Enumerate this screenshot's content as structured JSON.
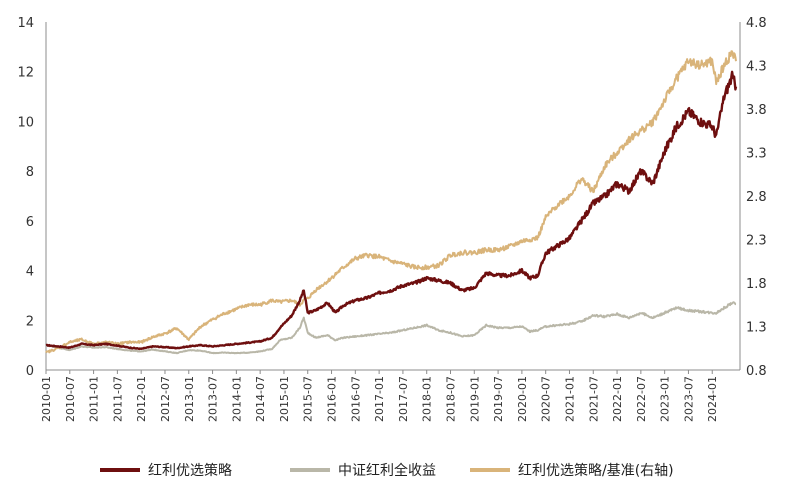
{
  "chart_data": {
    "type": "line",
    "title": "",
    "xlabel": "",
    "ylabel": "",
    "y_left": {
      "ticks": [
        0,
        2,
        4,
        6,
        8,
        10,
        12,
        14
      ],
      "tick_labels": [
        "0",
        "2",
        "4",
        "6",
        "8",
        "10",
        "12",
        "14"
      ],
      "ylim": [
        0,
        14
      ]
    },
    "y_right": {
      "ticks": [
        0.8,
        1.3,
        1.8,
        2.3,
        2.8,
        3.3,
        3.8,
        4.3,
        4.8
      ],
      "tick_labels": [
        "0.8",
        "1.3",
        "1.8",
        "2.3",
        "2.8",
        "3.3",
        "3.8",
        "4.3",
        "4.8"
      ],
      "ylim": [
        0.8,
        4.8
      ]
    },
    "x_ticks": [
      "2010-01",
      "2010-07",
      "2011-01",
      "2011-07",
      "2012-01",
      "2012-07",
      "2013-01",
      "2013-07",
      "2014-01",
      "2014-07",
      "2015-01",
      "2015-07",
      "2016-01",
      "2016-07",
      "2017-01",
      "2017-07",
      "2018-01",
      "2018-07",
      "2019-01",
      "2019-07",
      "2020-01",
      "2020-07",
      "2021-01",
      "2021-07",
      "2022-01",
      "2022-07",
      "2023-01",
      "2023-07",
      "2024-01"
    ],
    "grid": false,
    "legend_position": "bottom",
    "series": [
      {
        "name": "红利优选策略",
        "axis": "left",
        "color": "#6e0f0f",
        "points": [
          [
            "2010-01",
            1.0
          ],
          [
            "2010-04",
            0.95
          ],
          [
            "2010-07",
            0.9
          ],
          [
            "2010-10",
            1.05
          ],
          [
            "2011-01",
            1.0
          ],
          [
            "2011-04",
            1.05
          ],
          [
            "2011-07",
            0.98
          ],
          [
            "2011-10",
            0.9
          ],
          [
            "2012-01",
            0.85
          ],
          [
            "2012-04",
            0.95
          ],
          [
            "2012-07",
            0.92
          ],
          [
            "2012-10",
            0.88
          ],
          [
            "2013-01",
            0.95
          ],
          [
            "2013-04",
            1.0
          ],
          [
            "2013-07",
            0.95
          ],
          [
            "2013-10",
            1.0
          ],
          [
            "2014-01",
            1.05
          ],
          [
            "2014-04",
            1.1
          ],
          [
            "2014-07",
            1.15
          ],
          [
            "2014-10",
            1.3
          ],
          [
            "2014-12",
            1.7
          ],
          [
            "2015-03",
            2.2
          ],
          [
            "2015-05",
            2.8
          ],
          [
            "2015-06",
            3.2
          ],
          [
            "2015-07",
            2.3
          ],
          [
            "2015-09",
            2.4
          ],
          [
            "2015-12",
            2.7
          ],
          [
            "2016-02",
            2.3
          ],
          [
            "2016-04",
            2.6
          ],
          [
            "2016-07",
            2.8
          ],
          [
            "2016-10",
            2.9
          ],
          [
            "2017-01",
            3.1
          ],
          [
            "2017-04",
            3.2
          ],
          [
            "2017-07",
            3.4
          ],
          [
            "2017-10",
            3.5
          ],
          [
            "2018-01",
            3.7
          ],
          [
            "2018-04",
            3.6
          ],
          [
            "2018-07",
            3.5
          ],
          [
            "2018-10",
            3.2
          ],
          [
            "2019-01",
            3.3
          ],
          [
            "2019-04",
            3.9
          ],
          [
            "2019-07",
            3.8
          ],
          [
            "2019-10",
            3.8
          ],
          [
            "2020-01",
            4.0
          ],
          [
            "2020-03",
            3.7
          ],
          [
            "2020-05",
            3.8
          ],
          [
            "2020-07",
            4.7
          ],
          [
            "2020-10",
            5.0
          ],
          [
            "2021-01",
            5.3
          ],
          [
            "2021-04",
            6.0
          ],
          [
            "2021-07",
            6.7
          ],
          [
            "2021-10",
            7.0
          ],
          [
            "2022-01",
            7.5
          ],
          [
            "2022-04",
            7.2
          ],
          [
            "2022-07",
            8.0
          ],
          [
            "2022-10",
            7.5
          ],
          [
            "2023-01",
            8.8
          ],
          [
            "2023-04",
            9.8
          ],
          [
            "2023-07",
            10.4
          ],
          [
            "2023-10",
            10.0
          ],
          [
            "2024-01",
            9.8
          ],
          [
            "2024-02",
            9.4
          ],
          [
            "2024-04",
            11.0
          ],
          [
            "2024-06",
            11.8
          ],
          [
            "2024-07",
            11.4
          ]
        ]
      },
      {
        "name": "中证红利全收益",
        "axis": "left",
        "color": "#b9b7a8",
        "points": [
          [
            "2010-01",
            1.0
          ],
          [
            "2010-04",
            0.9
          ],
          [
            "2010-07",
            0.8
          ],
          [
            "2010-10",
            0.95
          ],
          [
            "2011-01",
            0.9
          ],
          [
            "2011-04",
            0.92
          ],
          [
            "2011-07",
            0.85
          ],
          [
            "2011-10",
            0.78
          ],
          [
            "2012-01",
            0.75
          ],
          [
            "2012-04",
            0.82
          ],
          [
            "2012-07",
            0.75
          ],
          [
            "2012-10",
            0.68
          ],
          [
            "2013-01",
            0.8
          ],
          [
            "2013-04",
            0.78
          ],
          [
            "2013-07",
            0.68
          ],
          [
            "2013-10",
            0.7
          ],
          [
            "2014-01",
            0.68
          ],
          [
            "2014-04",
            0.7
          ],
          [
            "2014-07",
            0.75
          ],
          [
            "2014-10",
            0.85
          ],
          [
            "2014-12",
            1.2
          ],
          [
            "2015-03",
            1.3
          ],
          [
            "2015-05",
            1.7
          ],
          [
            "2015-06",
            2.1
          ],
          [
            "2015-07",
            1.5
          ],
          [
            "2015-09",
            1.3
          ],
          [
            "2015-12",
            1.4
          ],
          [
            "2016-02",
            1.2
          ],
          [
            "2016-04",
            1.3
          ],
          [
            "2016-07",
            1.35
          ],
          [
            "2016-10",
            1.4
          ],
          [
            "2017-01",
            1.45
          ],
          [
            "2017-04",
            1.5
          ],
          [
            "2017-07",
            1.6
          ],
          [
            "2017-10",
            1.7
          ],
          [
            "2018-01",
            1.8
          ],
          [
            "2018-04",
            1.6
          ],
          [
            "2018-07",
            1.5
          ],
          [
            "2018-10",
            1.35
          ],
          [
            "2019-01",
            1.4
          ],
          [
            "2019-04",
            1.8
          ],
          [
            "2019-07",
            1.7
          ],
          [
            "2019-10",
            1.7
          ],
          [
            "2020-01",
            1.75
          ],
          [
            "2020-03",
            1.55
          ],
          [
            "2020-05",
            1.6
          ],
          [
            "2020-07",
            1.75
          ],
          [
            "2020-10",
            1.8
          ],
          [
            "2021-01",
            1.85
          ],
          [
            "2021-04",
            1.95
          ],
          [
            "2021-07",
            2.2
          ],
          [
            "2021-10",
            2.15
          ],
          [
            "2022-01",
            2.25
          ],
          [
            "2022-04",
            2.1
          ],
          [
            "2022-07",
            2.3
          ],
          [
            "2022-10",
            2.1
          ],
          [
            "2023-01",
            2.3
          ],
          [
            "2023-04",
            2.5
          ],
          [
            "2023-07",
            2.4
          ],
          [
            "2023-10",
            2.35
          ],
          [
            "2024-01",
            2.3
          ],
          [
            "2024-02",
            2.3
          ],
          [
            "2024-04",
            2.5
          ],
          [
            "2024-06",
            2.7
          ],
          [
            "2024-07",
            2.65
          ]
        ]
      },
      {
        "name": "红利优选策略/基准(右轴)",
        "axis": "right",
        "color": "#d9b47a",
        "points": [
          [
            "2010-01",
            1.0
          ],
          [
            "2010-04",
            1.05
          ],
          [
            "2010-07",
            1.12
          ],
          [
            "2010-10",
            1.15
          ],
          [
            "2011-01",
            1.1
          ],
          [
            "2011-04",
            1.12
          ],
          [
            "2011-07",
            1.1
          ],
          [
            "2011-10",
            1.12
          ],
          [
            "2012-01",
            1.12
          ],
          [
            "2012-04",
            1.18
          ],
          [
            "2012-07",
            1.22
          ],
          [
            "2012-10",
            1.28
          ],
          [
            "2013-01",
            1.15
          ],
          [
            "2013-04",
            1.3
          ],
          [
            "2013-07",
            1.38
          ],
          [
            "2013-10",
            1.45
          ],
          [
            "2014-01",
            1.5
          ],
          [
            "2014-04",
            1.55
          ],
          [
            "2014-07",
            1.55
          ],
          [
            "2014-10",
            1.6
          ],
          [
            "2014-12",
            1.58
          ],
          [
            "2015-03",
            1.6
          ],
          [
            "2015-05",
            1.55
          ],
          [
            "2015-06",
            1.6
          ],
          [
            "2015-07",
            1.62
          ],
          [
            "2015-09",
            1.72
          ],
          [
            "2015-12",
            1.82
          ],
          [
            "2016-02",
            1.9
          ],
          [
            "2016-04",
            1.98
          ],
          [
            "2016-07",
            2.08
          ],
          [
            "2016-10",
            2.12
          ],
          [
            "2017-01",
            2.1
          ],
          [
            "2017-04",
            2.05
          ],
          [
            "2017-07",
            2.02
          ],
          [
            "2017-10",
            1.98
          ],
          [
            "2018-01",
            1.98
          ],
          [
            "2018-04",
            2.0
          ],
          [
            "2018-07",
            2.12
          ],
          [
            "2018-10",
            2.15
          ],
          [
            "2019-01",
            2.15
          ],
          [
            "2019-04",
            2.18
          ],
          [
            "2019-07",
            2.18
          ],
          [
            "2019-10",
            2.22
          ],
          [
            "2020-01",
            2.28
          ],
          [
            "2020-03",
            2.3
          ],
          [
            "2020-05",
            2.32
          ],
          [
            "2020-07",
            2.55
          ],
          [
            "2020-10",
            2.7
          ],
          [
            "2021-01",
            2.8
          ],
          [
            "2021-04",
            3.0
          ],
          [
            "2021-07",
            2.85
          ],
          [
            "2021-10",
            3.15
          ],
          [
            "2022-01",
            3.3
          ],
          [
            "2022-04",
            3.45
          ],
          [
            "2022-07",
            3.55
          ],
          [
            "2022-10",
            3.65
          ],
          [
            "2023-01",
            3.9
          ],
          [
            "2023-04",
            4.15
          ],
          [
            "2023-07",
            4.35
          ],
          [
            "2023-10",
            4.3
          ],
          [
            "2024-01",
            4.35
          ],
          [
            "2024-02",
            4.1
          ],
          [
            "2024-04",
            4.3
          ],
          [
            "2024-06",
            4.45
          ],
          [
            "2024-07",
            4.35
          ]
        ]
      }
    ]
  }
}
